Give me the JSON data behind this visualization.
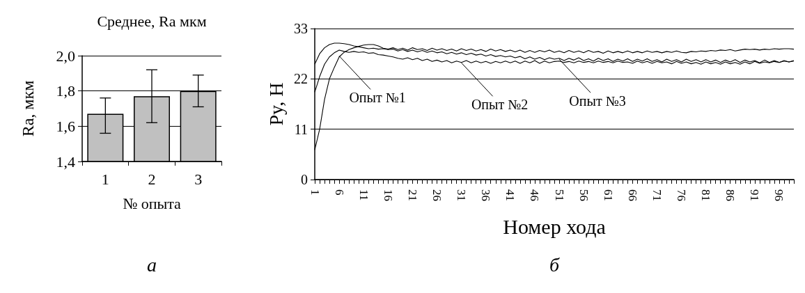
{
  "chart_data": [
    {
      "type": "bar",
      "title": "Среднее, Ra мкм",
      "xlabel": "№ опыта",
      "ylabel": "Ra, мкм",
      "categories": [
        "1",
        "2",
        "3"
      ],
      "values": [
        1.67,
        1.77,
        1.8
      ],
      "color": "#c0c0c0",
      "errors": [
        [
          1.56,
          1.76
        ],
        [
          1.62,
          1.92
        ],
        [
          1.71,
          1.89
        ]
      ],
      "ylim": [
        1.4,
        2.0
      ],
      "yticks": [
        {
          "value": 1.4,
          "label": "1,4"
        },
        {
          "value": 1.6,
          "label": "1,6"
        },
        {
          "value": 1.8,
          "label": "1,8"
        },
        {
          "value": 2.0,
          "label": "2,0"
        }
      ],
      "grid": "y",
      "annotations": [
        "а"
      ]
    },
    {
      "type": "line",
      "xlabel": "Номер хода",
      "ylabel": "Py, Н",
      "ylim": [
        0,
        33
      ],
      "yticks": [
        0,
        11,
        22,
        33
      ],
      "grid": "y",
      "marker": "none",
      "line_style": "solid",
      "categories": [
        "1",
        null,
        null,
        null,
        null,
        "6",
        null,
        null,
        null,
        null,
        "11",
        null,
        null,
        null,
        null,
        "16",
        null,
        null,
        null,
        null,
        "21",
        null,
        null,
        null,
        null,
        "26",
        null,
        null,
        null,
        null,
        "31",
        null,
        null,
        null,
        null,
        "36",
        null,
        null,
        null,
        null,
        "41",
        null,
        null,
        null,
        null,
        "46",
        null,
        null,
        null,
        null,
        "51",
        null,
        null,
        null,
        null,
        "56",
        null,
        null,
        null,
        null,
        "61",
        null,
        null,
        null,
        null,
        "66",
        null,
        null,
        null,
        null,
        "71",
        null,
        null,
        null,
        null,
        "76",
        null,
        null,
        null,
        null,
        "81",
        null,
        null,
        null,
        null,
        "86",
        null,
        null,
        null,
        null,
        "91",
        null,
        null,
        null,
        null,
        "96",
        null,
        null,
        null
      ],
      "series": [
        {
          "color": "#000000",
          "values": [
            6.5,
            11,
            17.5,
            22,
            24.5,
            26.8,
            27.8,
            28.4,
            28.8,
            29.1,
            29.4,
            29.5,
            29.5,
            29.2,
            28.7,
            28.5,
            28.8,
            28.4,
            28.7,
            28.3,
            28.8,
            28.4,
            28.6,
            28.2,
            28.7,
            28.3,
            28.6,
            28.2,
            28.5,
            28.1,
            28.6,
            28.2,
            28.5,
            28.1,
            28.4,
            28.0,
            28.5,
            28.1,
            28.4,
            28.0,
            28.3,
            27.9,
            28.3,
            27.8,
            28.2,
            27.8,
            28.2,
            27.9,
            28.3,
            27.8,
            28.1,
            27.7,
            28.2,
            27.8,
            28.1,
            27.7,
            28.2,
            27.8,
            28.0,
            27.6,
            28.1,
            27.7,
            28.0,
            27.7,
            28.1,
            27.7,
            28.0,
            27.7,
            28.1,
            27.8,
            28.0,
            27.7,
            28.0,
            27.8,
            28.1,
            27.8,
            27.7,
            28.0,
            27.9,
            28.1,
            28.0,
            28.2,
            28.1,
            28.3,
            28.2,
            28.4,
            28.1,
            28.3,
            28.5,
            28.4,
            28.5,
            28.3,
            28.5,
            28.4,
            28.6,
            28.5,
            28.6,
            28.6,
            28.5
          ]
        },
        {
          "color": "#000000",
          "values": [
            19.1,
            22.5,
            25.2,
            26.8,
            27.7,
            28.3,
            28.0,
            27.8,
            28.0,
            27.8,
            27.9,
            27.6,
            27.7,
            27.3,
            27.2,
            27.0,
            26.8,
            26.5,
            26.3,
            26.6,
            26.2,
            26.5,
            26.0,
            26.3,
            25.8,
            26.1,
            25.7,
            26.0,
            25.5,
            25.9,
            25.6,
            26.0,
            25.5,
            25.9,
            25.5,
            25.8,
            25.4,
            25.8,
            25.5,
            25.9,
            25.5,
            25.9,
            25.4,
            25.9,
            25.5,
            26.0,
            25.4,
            25.9,
            25.5,
            25.8,
            25.9,
            25.6,
            25.8,
            25.5,
            25.9,
            25.6,
            25.8,
            25.5,
            25.9,
            25.6,
            25.8,
            25.5,
            25.9,
            25.6,
            25.7,
            25.4,
            25.9,
            25.5,
            25.8,
            25.4,
            25.8,
            25.5,
            25.7,
            25.3,
            25.8,
            25.4,
            25.7,
            25.3,
            25.6,
            25.2,
            25.7,
            25.3,
            25.6,
            25.2,
            25.7,
            25.3,
            25.6,
            25.2,
            25.7,
            25.3,
            25.8,
            25.4,
            25.7,
            25.5,
            25.8,
            25.6,
            25.9,
            25.7,
            26.0
          ]
        },
        {
          "color": "#000000",
          "values": [
            25.2,
            27.5,
            28.8,
            29.5,
            29.8,
            29.8,
            29.7,
            29.5,
            29.2,
            29.0,
            28.8,
            28.6,
            28.7,
            28.5,
            28.6,
            28.4,
            28.5,
            28.1,
            28.4,
            28.0,
            28.3,
            27.9,
            28.2,
            27.8,
            28.1,
            27.7,
            27.9,
            27.5,
            27.8,
            27.4,
            27.7,
            27.3,
            27.6,
            27.2,
            27.4,
            27.0,
            27.3,
            26.9,
            27.1,
            26.8,
            27.0,
            26.6,
            26.9,
            26.4,
            26.8,
            26.3,
            26.7,
            26.2,
            26.6,
            26.3,
            26.5,
            26.0,
            26.5,
            26.1,
            26.6,
            26.0,
            26.4,
            25.9,
            26.5,
            26.0,
            26.4,
            25.8,
            26.3,
            25.9,
            26.4,
            25.8,
            26.3,
            25.9,
            26.4,
            25.8,
            26.2,
            25.7,
            26.3,
            25.8,
            26.2,
            25.7,
            26.3,
            25.8,
            26.2,
            25.7,
            26.2,
            25.7,
            26.1,
            25.6,
            26.1,
            25.7,
            26.2,
            25.6,
            26.1,
            25.7,
            26.0,
            25.5,
            26.1,
            25.6,
            26.0,
            25.6,
            26.0,
            25.7,
            25.9
          ]
        }
      ],
      "annotations": [
        {
          "text": "Опыт №1",
          "x": "6",
          "y": 27
        },
        {
          "text": "Опыт №2",
          "x": "31",
          "y": 25.5
        },
        {
          "text": "Опыт №3",
          "x": "51",
          "y": 26.3
        },
        "б"
      ]
    }
  ]
}
